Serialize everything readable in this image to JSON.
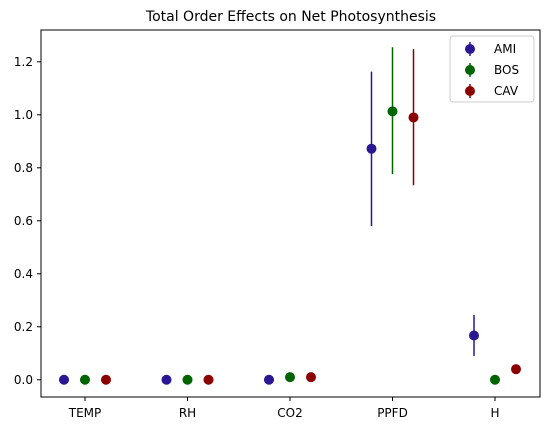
{
  "chart_data": {
    "type": "scatter",
    "title": "Total Order Effects on Net Photosynthesis",
    "xlabel": "",
    "ylabel": "",
    "categories": [
      "TEMP",
      "RH",
      "CO2",
      "PPFD",
      "H"
    ],
    "ylim": [
      -0.065,
      1.32
    ],
    "yticks": [
      0.0,
      0.2,
      0.4,
      0.6,
      0.8,
      1.0,
      1.2
    ],
    "ytick_labels": [
      "0.0",
      "0.2",
      "0.4",
      "0.6",
      "0.8",
      "1.0",
      "1.2"
    ],
    "grid": false,
    "legend": {
      "placement": "top-right"
    },
    "series": [
      {
        "name": "AMI",
        "color": "#2b1693",
        "values": [
          0.0,
          0.0,
          0.0,
          0.872,
          0.167
        ],
        "error_low": [
          0.0,
          0.0,
          0.0,
          0.58,
          0.09
        ],
        "error_high": [
          0.0,
          0.0,
          0.0,
          1.163,
          0.245
        ]
      },
      {
        "name": "BOS",
        "color": "#006400",
        "values": [
          0.0,
          0.0,
          0.01,
          1.013,
          0.0
        ],
        "error_low": [
          0.0,
          0.0,
          0.01,
          0.776,
          0.0
        ],
        "error_high": [
          0.0,
          0.0,
          0.01,
          1.255,
          0.0
        ]
      },
      {
        "name": "CAV",
        "color": "#8b0000",
        "values": [
          0.0,
          0.0,
          0.01,
          0.99,
          0.04
        ],
        "error_low": [
          0.0,
          0.0,
          0.01,
          0.734,
          0.04
        ],
        "error_high": [
          0.0,
          0.0,
          0.01,
          1.248,
          0.04
        ]
      }
    ]
  }
}
